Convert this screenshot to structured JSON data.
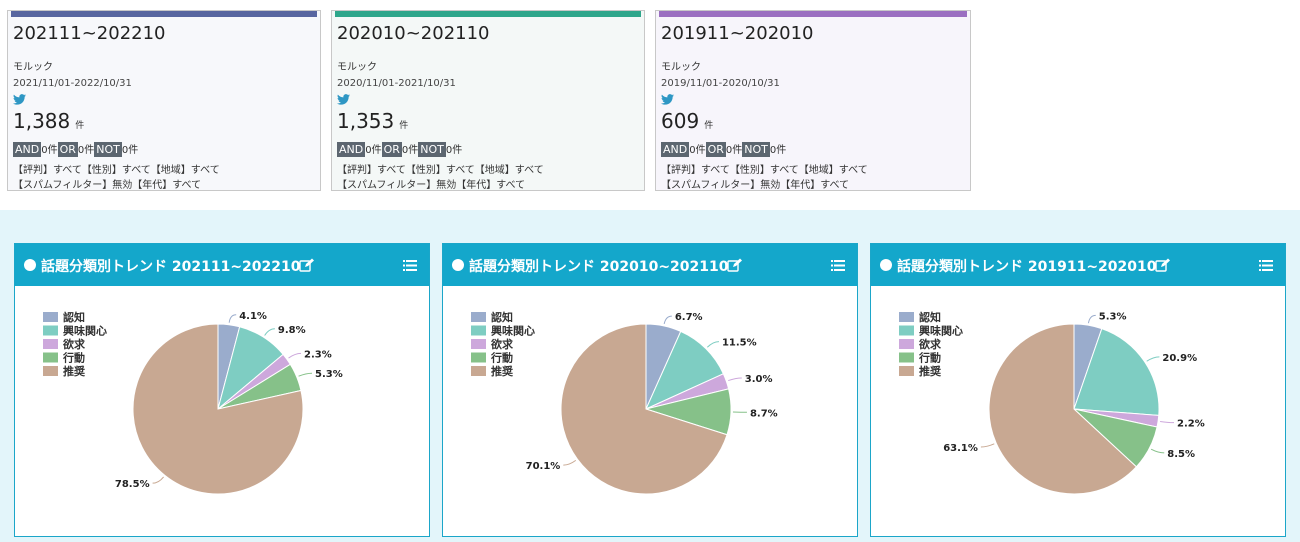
{
  "colors": {
    "card_bars": [
      "#5866a0",
      "#2ea68b",
      "#9b6fc1"
    ],
    "card_bg": [
      "#f7f8fb",
      "#f4f8f7",
      "#f7f5fb"
    ],
    "twitter": "#2e97c4",
    "header": "#14a7cb",
    "band": "#e3f5fa"
  },
  "cards": [
    {
      "range": "202111~202210",
      "keyword": "モルック",
      "period": "2021/11/01-2022/10/31",
      "icon": "twitter-bird-icon",
      "count": "1,388",
      "unit": "件",
      "and_label": "AND",
      "and_count": "0件",
      "or_label": "OR",
      "or_count": "0件",
      "not_label": "NOT",
      "not_count": "0件",
      "conditions_1": "【評判】すべて【性別】すべて【地域】すべて",
      "conditions_2": "【スパムフィルター】無効【年代】すべて"
    },
    {
      "range": "202010~202110",
      "keyword": "モルック",
      "period": "2020/11/01-2021/10/31",
      "icon": "twitter-bird-icon",
      "count": "1,353",
      "unit": "件",
      "and_label": "AND",
      "and_count": "0件",
      "or_label": "OR",
      "or_count": "0件",
      "not_label": "NOT",
      "not_count": "0件",
      "conditions_1": "【評判】すべて【性別】すべて【地域】すべて",
      "conditions_2": "【スパムフィルター】無効【年代】すべて"
    },
    {
      "range": "201911~202010",
      "keyword": "モルック",
      "period": "2019/11/01-2020/10/31",
      "icon": "twitter-bird-icon",
      "count": "609",
      "unit": "件",
      "and_label": "AND",
      "and_count": "0件",
      "or_label": "OR",
      "or_count": "0件",
      "not_label": "NOT",
      "not_count": "0件",
      "conditions_1": "【評判】すべて【性別】すべて【地域】すべて",
      "conditions_2": "【スパムフィルター】無効【年代】すべて"
    }
  ],
  "panels": [
    {
      "title": "話題分類別トレンド 202111~202210",
      "icons": [
        "edit-icon",
        "menu-list-icon"
      ]
    },
    {
      "title": "話題分類別トレンド 202010~202110",
      "icons": [
        "edit-icon",
        "menu-list-icon"
      ]
    },
    {
      "title": "話題分類別トレンド 201911~202010",
      "icons": [
        "edit-icon",
        "menu-list-icon"
      ]
    }
  ],
  "chart_data": [
    {
      "type": "pie",
      "title": "話題分類別トレンド 202111~202210",
      "legend_position": "top-left",
      "categories": [
        "認知",
        "興味関心",
        "欲求",
        "行動",
        "推奨"
      ],
      "colors": [
        "#9aaccc",
        "#7ecdc2",
        "#cda8dc",
        "#86c189",
        "#c8a892"
      ],
      "values": [
        4.1,
        9.8,
        2.3,
        5.3,
        78.5
      ],
      "labels": [
        "4.1%",
        "9.8%",
        "2.3%",
        "5.3%",
        "78.5%"
      ]
    },
    {
      "type": "pie",
      "title": "話題分類別トレンド 202010~202110",
      "legend_position": "top-left",
      "categories": [
        "認知",
        "興味関心",
        "欲求",
        "行動",
        "推奨"
      ],
      "colors": [
        "#9aaccc",
        "#7ecdc2",
        "#cda8dc",
        "#86c189",
        "#c8a892"
      ],
      "values": [
        6.7,
        11.5,
        3.0,
        8.7,
        70.1
      ],
      "labels": [
        "6.7%",
        "11.5%",
        "3.0%",
        "8.7%",
        "70.1%"
      ]
    },
    {
      "type": "pie",
      "title": "話題分類別トレンド 201911~202010",
      "legend_position": "top-left",
      "categories": [
        "認知",
        "興味関心",
        "欲求",
        "行動",
        "推奨"
      ],
      "colors": [
        "#9aaccc",
        "#7ecdc2",
        "#cda8dc",
        "#86c189",
        "#c8a892"
      ],
      "values": [
        5.3,
        20.9,
        2.2,
        8.5,
        63.1
      ],
      "labels": [
        "5.3%",
        "20.9%",
        "2.2%",
        "8.5%",
        "63.1%"
      ]
    }
  ]
}
